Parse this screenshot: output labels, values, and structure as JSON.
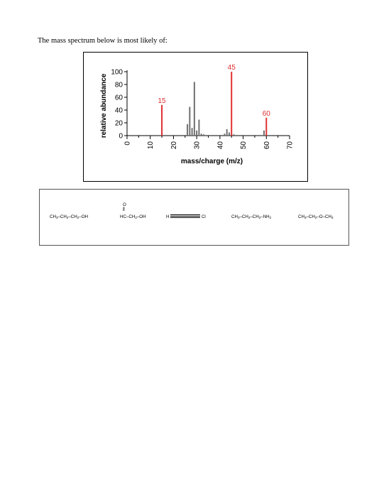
{
  "question": "The mass spectrum below is most likely of:",
  "chart_data": {
    "type": "bar",
    "xlabel": "mass/charge (m/z)",
    "ylabel": "relative abundance",
    "xlim": [
      0,
      70
    ],
    "ylim": [
      0,
      100
    ],
    "x_ticks": [
      "0",
      "10",
      "20",
      "30",
      "40",
      "50",
      "60",
      "70"
    ],
    "y_ticks": [
      "0",
      "20",
      "40",
      "60",
      "80",
      "100"
    ],
    "bar_color": "#707070",
    "highlight_color": "#e03030",
    "peaks": [
      {
        "mz": 15,
        "abundance": 48,
        "label": "15",
        "highlight": true
      },
      {
        "mz": 26,
        "abundance": 18,
        "highlight": false
      },
      {
        "mz": 27,
        "abundance": 45,
        "highlight": false
      },
      {
        "mz": 28,
        "abundance": 12,
        "highlight": false
      },
      {
        "mz": 29,
        "abundance": 84,
        "highlight": false
      },
      {
        "mz": 30,
        "abundance": 8,
        "highlight": false
      },
      {
        "mz": 31,
        "abundance": 25,
        "highlight": false
      },
      {
        "mz": 32,
        "abundance": 3,
        "highlight": false
      },
      {
        "mz": 33,
        "abundance": 2,
        "highlight": false
      },
      {
        "mz": 42,
        "abundance": 3,
        "highlight": false
      },
      {
        "mz": 43,
        "abundance": 10,
        "highlight": false
      },
      {
        "mz": 44,
        "abundance": 5,
        "highlight": false
      },
      {
        "mz": 45,
        "abundance": 100,
        "label": "45",
        "highlight": true
      },
      {
        "mz": 46,
        "abundance": 2,
        "highlight": false
      },
      {
        "mz": 59,
        "abundance": 8,
        "highlight": false
      },
      {
        "mz": 60,
        "abundance": 28,
        "label": "60",
        "highlight": true
      }
    ]
  },
  "options": {
    "a": {
      "t1": "CH",
      "s1": "3",
      "t2": "–CH",
      "s2": "2",
      "t3": "–CH",
      "s3": "2",
      "t4": "–OH"
    },
    "b": {
      "top": "O",
      "bond": "‖",
      "t1": "HC–CH",
      "s1": "2",
      "t2": "–OH"
    },
    "c": {
      "h": "H",
      "bond": "———",
      "cl": "Cl"
    },
    "d": {
      "t1": "CH",
      "s1": "3",
      "t2": "–CH",
      "s2": "2",
      "t3": "–CH",
      "s3": "2",
      "t4": "–NH",
      "s4": "2"
    },
    "e": {
      "t1": "CH",
      "s1": "3",
      "t2": "–CH",
      "s2": "2",
      "t3": "–O–CH",
      "s3": "3"
    }
  }
}
